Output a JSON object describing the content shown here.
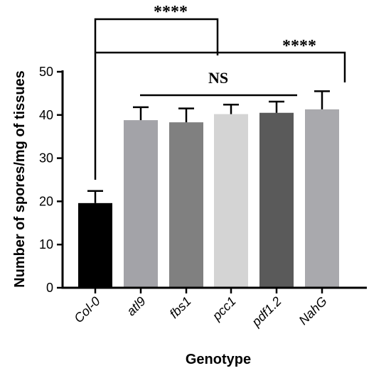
{
  "chart_data": {
    "type": "bar",
    "title": "",
    "xlabel": "Genotype",
    "ylabel": "Number of spores/mg of tissues",
    "ylim": [
      0,
      50
    ],
    "yticks": [
      "0",
      "10",
      "20",
      "30",
      "40",
      "50"
    ],
    "categories": [
      "Col-0",
      "atl9",
      "fbs1",
      "pcc1",
      "pdf1.2",
      "NahG"
    ],
    "values": [
      19.6,
      38.8,
      38.3,
      40.2,
      40.5,
      41.3
    ],
    "errors": [
      2.8,
      3.0,
      3.2,
      2.2,
      2.6,
      4.2
    ],
    "bar_colors": [
      "#000000",
      "#a3a3a8",
      "#808080",
      "#d4d4d4",
      "#5a5a5a",
      "#a9a9ad"
    ],
    "grid": false,
    "annotations": {
      "sig_atl9": "****",
      "sig_nahg": "****",
      "ns": "NS"
    }
  }
}
